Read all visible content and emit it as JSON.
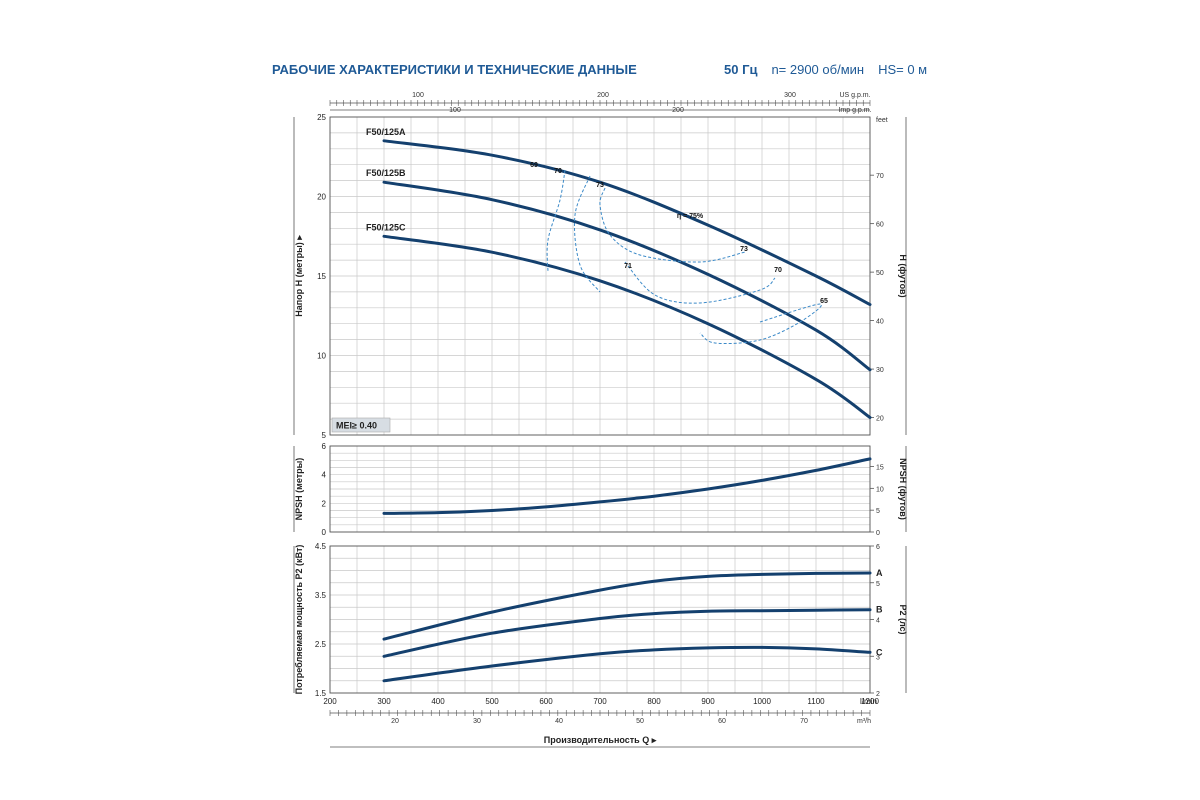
{
  "header": {
    "title": "РАБОЧИЕ ХАРАКТЕРИСТИКИ И ТЕХНИЧЕСКИЕ ДАННЫЕ",
    "freq": "50 Гц",
    "speed": "n= 2900 об/мин",
    "hs": "HS= 0 м"
  },
  "top_axes": {
    "us_label": "US g.p.m.",
    "us_ticks": [
      "100",
      "200",
      "300"
    ],
    "imp_label": "Imp g.p.m.",
    "imp_ticks": [
      "100",
      "200"
    ]
  },
  "bottom_axes": {
    "lmin_label": "l/min",
    "lmin_ticks": [
      "200",
      "300",
      "400",
      "500",
      "600",
      "700",
      "800",
      "900",
      "1000",
      "1100",
      "1200"
    ],
    "m3h_label": "m³/h",
    "m3h_ticks": [
      "20",
      "30",
      "40",
      "50",
      "60",
      "70"
    ],
    "x_title": "Производительность Q"
  },
  "mei_label": "MEI≥ 0.40",
  "colors": {
    "curve": "#14406e",
    "efficiency": "#3c8ac8",
    "title": "#1f5a96",
    "grid": "#c9c9c9",
    "mei_bg": "#d7dde3"
  },
  "chart_data": [
    {
      "type": "line",
      "ylabel": "Напор H (метры)",
      "y2label": "H (футов)",
      "y2unit": "feet",
      "xlim": [
        200,
        1200
      ],
      "ylim": [
        5,
        25
      ],
      "y2lim": [
        16.4,
        82
      ],
      "yticks": [
        "5",
        "10",
        "15",
        "20",
        "25"
      ],
      "y2ticks": [
        "20",
        "30",
        "40",
        "50",
        "60",
        "70"
      ],
      "series": [
        {
          "name": "F50/125A",
          "x": [
            300,
            500,
            700,
            900,
            1100,
            1200
          ],
          "y": [
            23.5,
            22.6,
            20.9,
            18.2,
            15.0,
            13.2
          ]
        },
        {
          "name": "F50/125B",
          "x": [
            300,
            500,
            700,
            900,
            1100,
            1200
          ],
          "y": [
            20.9,
            19.8,
            17.9,
            15.1,
            11.6,
            9.1
          ]
        },
        {
          "name": "F50/125C",
          "x": [
            300,
            500,
            700,
            900,
            1100,
            1200
          ],
          "y": [
            17.5,
            16.5,
            14.7,
            12.0,
            8.5,
            6.1
          ]
        }
      ],
      "efficiency_labels": [
        "69",
        "70",
        "73",
        "η = 75%",
        "73",
        "71",
        "70",
        "65"
      ]
    },
    {
      "type": "line",
      "ylabel": "NPSH (метры)",
      "y2label": "NPSH (футов)",
      "xlim": [
        200,
        1200
      ],
      "ylim": [
        0,
        6
      ],
      "y2lim": [
        0,
        19.7
      ],
      "yticks": [
        "0",
        "2",
        "4",
        "6"
      ],
      "y2ticks": [
        "0",
        "5",
        "10",
        "15"
      ],
      "series": [
        {
          "x": [
            300,
            400,
            500,
            600,
            700,
            800,
            900,
            1000,
            1100,
            1200
          ],
          "y": [
            1.3,
            1.35,
            1.5,
            1.75,
            2.1,
            2.5,
            3.0,
            3.6,
            4.3,
            5.1
          ]
        }
      ]
    },
    {
      "type": "line",
      "ylabel": "Потребляемая мощность P2 (кВт)",
      "y2label": "P2 (лс)",
      "xlim": [
        200,
        1200
      ],
      "ylim": [
        1.5,
        4.5
      ],
      "y2lim": [
        2,
        6
      ],
      "yticks": [
        "1.5",
        "2.5",
        "3.5",
        "4.5"
      ],
      "y2ticks": [
        "2",
        "3",
        "4",
        "5",
        "6"
      ],
      "series": [
        {
          "name": "A",
          "x": [
            300,
            500,
            700,
            800,
            900,
            1000,
            1100,
            1200
          ],
          "y": [
            2.6,
            3.15,
            3.6,
            3.78,
            3.88,
            3.92,
            3.94,
            3.95
          ]
        },
        {
          "name": "B",
          "x": [
            300,
            500,
            700,
            800,
            900,
            1000,
            1100,
            1200
          ],
          "y": [
            2.25,
            2.72,
            3.02,
            3.12,
            3.17,
            3.18,
            3.19,
            3.2
          ]
        },
        {
          "name": "C",
          "x": [
            300,
            500,
            700,
            800,
            900,
            1000,
            1100,
            1200
          ],
          "y": [
            1.75,
            2.05,
            2.3,
            2.38,
            2.42,
            2.43,
            2.4,
            2.33
          ]
        }
      ]
    }
  ]
}
